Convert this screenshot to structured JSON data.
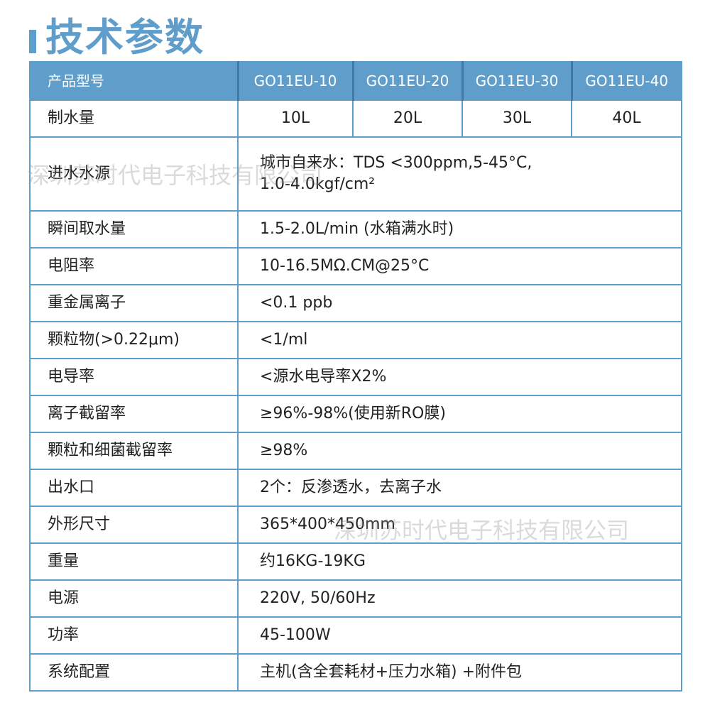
{
  "title": "技术参数",
  "header": {
    "label": "产品型号",
    "models": [
      "GO11EU-10",
      "GO11EU-20",
      "GO11EU-30",
      "GO11EU-40"
    ]
  },
  "capacity": {
    "label": "制水量",
    "values": [
      "10L",
      "20L",
      "30L",
      "40L"
    ]
  },
  "rows": [
    {
      "label": "进水水源",
      "value": "城市自来水：TDS <300ppm,5-45°C,",
      "value2": "1.0-4.0kgf/cm²"
    },
    {
      "label": "瞬间取水量",
      "value": "1.5-2.0L/min (水箱满水时)"
    },
    {
      "label": "电阻率",
      "value": "10-16.5MΩ.CM@25°C"
    },
    {
      "label": "重金属离子",
      "value": "<0.1 ppb"
    },
    {
      "label": "颗粒物(>0.22μm)",
      "value": "<1/ml"
    },
    {
      "label": "电导率",
      "value": "<源水电导率X2%"
    },
    {
      "label": "离子截留率",
      "value": "≥96%-98%(使用新RO膜)"
    },
    {
      "label": "颗粒和细菌截留率",
      "value": "≥98%"
    },
    {
      "label": "出水口",
      "value": "2个：反渗透水，去离子水"
    },
    {
      "label": "外形尺寸",
      "value": "365*400*450mm"
    },
    {
      "label": "重量",
      "value": "约16KG-19KG"
    },
    {
      "label": "电源",
      "value": "220V, 50/60Hz"
    },
    {
      "label": "功率",
      "value": "45-100W"
    },
    {
      "label": "系统配置",
      "value": "主机(含全套耗材+压力水箱) +附件包"
    }
  ],
  "watermark": "深圳苏时代电子科技有限公司",
  "colors": {
    "accent": "#5f9dcb",
    "divider": "#3f7aa8"
  }
}
